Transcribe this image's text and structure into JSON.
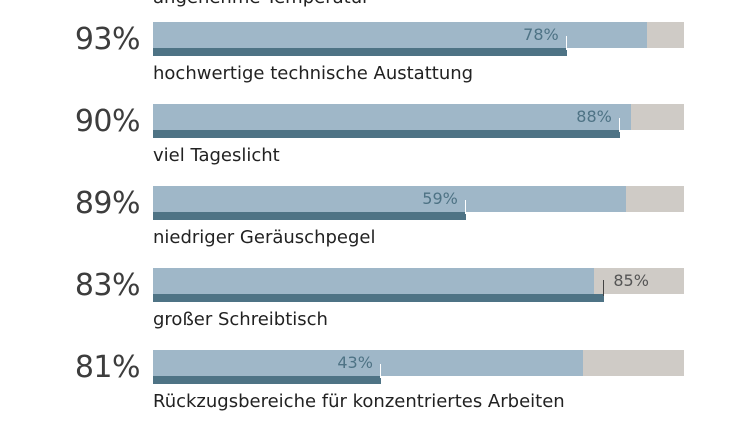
{
  "chart_data": {
    "type": "bar",
    "top_partial_label": "angenehme Temperatur",
    "categories": [
      "hochwertige technische Austattung",
      "viel Tageslicht",
      "niedriger Geräuschpegel",
      "großer Schreibtisch",
      "Rückzugsbereiche für konzentriertes Arbeiten"
    ],
    "series": [
      {
        "values": [
          93,
          90,
          89,
          83,
          81
        ],
        "labels": [
          "93%",
          "90%",
          "89%",
          "83%",
          "81%"
        ]
      },
      {
        "values": [
          78,
          88,
          59,
          85,
          43
        ],
        "labels": [
          "78%",
          "88%",
          "59%",
          "85%",
          "43%"
        ]
      }
    ],
    "xlim": [
      0,
      100
    ],
    "colors": {
      "series_1": "#9fb7c8",
      "series_2": "#4e7385",
      "track": "#cfcbc6"
    }
  }
}
